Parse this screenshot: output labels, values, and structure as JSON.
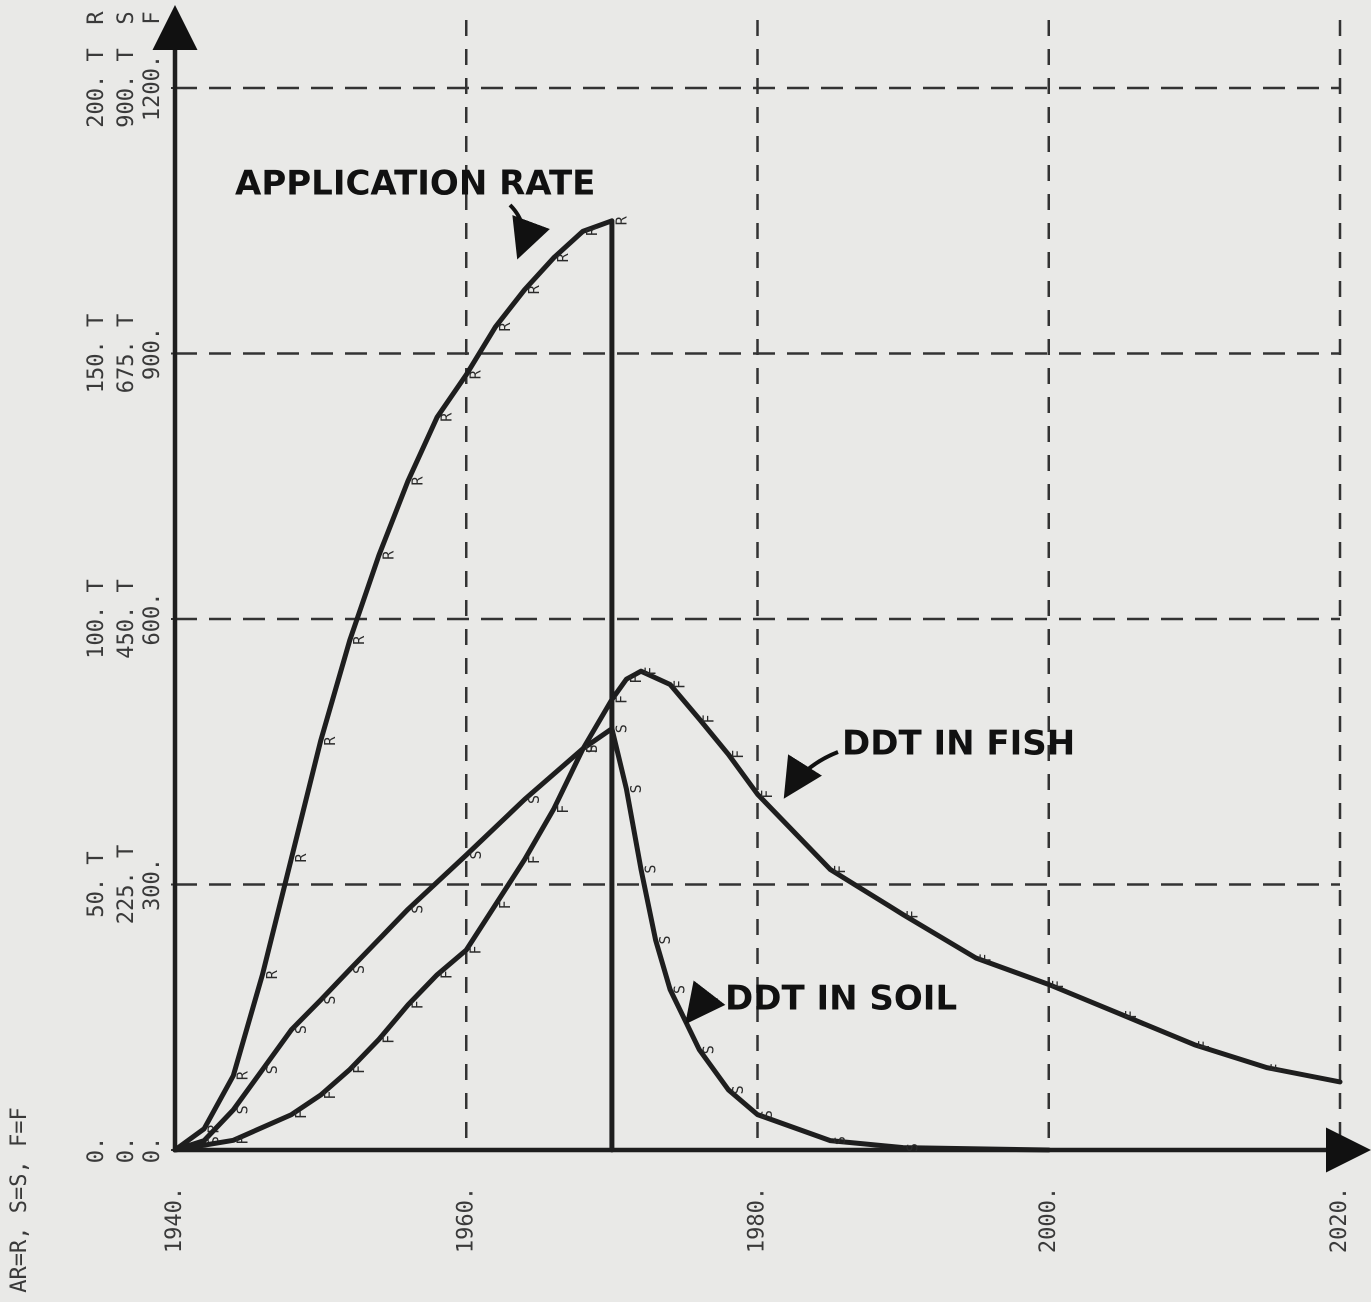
{
  "chart_data": {
    "type": "line",
    "note": "AR=R, S=S, F=F",
    "xlim": [
      1940,
      2020
    ],
    "xticks": [
      {
        "value": 1940,
        "label": "1940."
      },
      {
        "value": 1960,
        "label": "1960."
      },
      {
        "value": 1980,
        "label": "1980."
      },
      {
        "value": 2000,
        "label": "2000."
      },
      {
        "value": 2020,
        "label": "2020."
      }
    ],
    "ylim": [
      0,
      200
    ],
    "yticks": [
      {
        "value": 0,
        "label": "0."
      },
      {
        "value": 50,
        "label": "50. T"
      },
      {
        "value": 100,
        "label": "100. T"
      },
      {
        "value": 150,
        "label": "150. T"
      },
      {
        "value": 200,
        "label": "200. T"
      }
    ],
    "ylabel": "R",
    "y2lim": [
      0,
      900
    ],
    "y2ticks": [
      {
        "value": 0,
        "label": "0."
      },
      {
        "value": 225,
        "label": "225. T"
      },
      {
        "value": 450,
        "label": "450. T"
      },
      {
        "value": 675,
        "label": "675. T"
      },
      {
        "value": 900,
        "label": "900. T"
      }
    ],
    "y2label": "S",
    "y3lim": [
      0,
      1200
    ],
    "y3ticks": [
      {
        "value": 0,
        "label": "0."
      },
      {
        "value": 300,
        "label": "300."
      },
      {
        "value": 600,
        "label": "600."
      },
      {
        "value": 900,
        "label": "900."
      },
      {
        "value": 1200,
        "label": "1200."
      }
    ],
    "y3label": "F",
    "grid": true,
    "series": [
      {
        "name": "APPLICATION RATE",
        "marker": "R",
        "axis": "y",
        "color": "#1e1e1e",
        "x": [
          1940,
          1942,
          1944,
          1946,
          1948,
          1950,
          1952,
          1954,
          1956,
          1958,
          1960,
          1962,
          1964,
          1966,
          1968,
          1970,
          1970
        ],
        "values": [
          0,
          4,
          14,
          33,
          55,
          77,
          96,
          112,
          126,
          138,
          146,
          155,
          162,
          168,
          173,
          175,
          0
        ]
      },
      {
        "name": "DDT IN SOIL",
        "marker": "S",
        "axis": "y2",
        "color": "#1e1e1e",
        "x": [
          1940,
          1942,
          1944,
          1946,
          1948,
          1950,
          1952,
          1956,
          1960,
          1964,
          1968,
          1970,
          1971,
          1972,
          1973,
          1974,
          1976,
          1978,
          1980,
          1985,
          1990,
          2000
        ],
        "values": [
          0,
          8,
          34,
          68,
          102,
          127,
          153,
          204,
          250,
          297,
          340,
          357,
          306,
          238,
          178,
          136,
          85,
          51,
          30,
          8,
          2,
          0
        ]
      },
      {
        "name": "DDT IN FISH",
        "marker": "F",
        "axis": "y3",
        "color": "#1e1e1e",
        "x": [
          1940,
          1944,
          1948,
          1950,
          1952,
          1954,
          1956,
          1958,
          1960,
          1962,
          1964,
          1966,
          1968,
          1970,
          1971,
          1972,
          1974,
          1976,
          1978,
          1980,
          1985,
          1990,
          1995,
          2000,
          2005,
          2010,
          2015,
          2020
        ],
        "values": [
          0,
          11,
          40,
          62,
          91,
          125,
          164,
          198,
          226,
          277,
          328,
          385,
          453,
          509,
          532,
          541,
          526,
          487,
          447,
          402,
          317,
          266,
          217,
          187,
          153,
          119,
          93,
          77
        ]
      }
    ]
  }
}
